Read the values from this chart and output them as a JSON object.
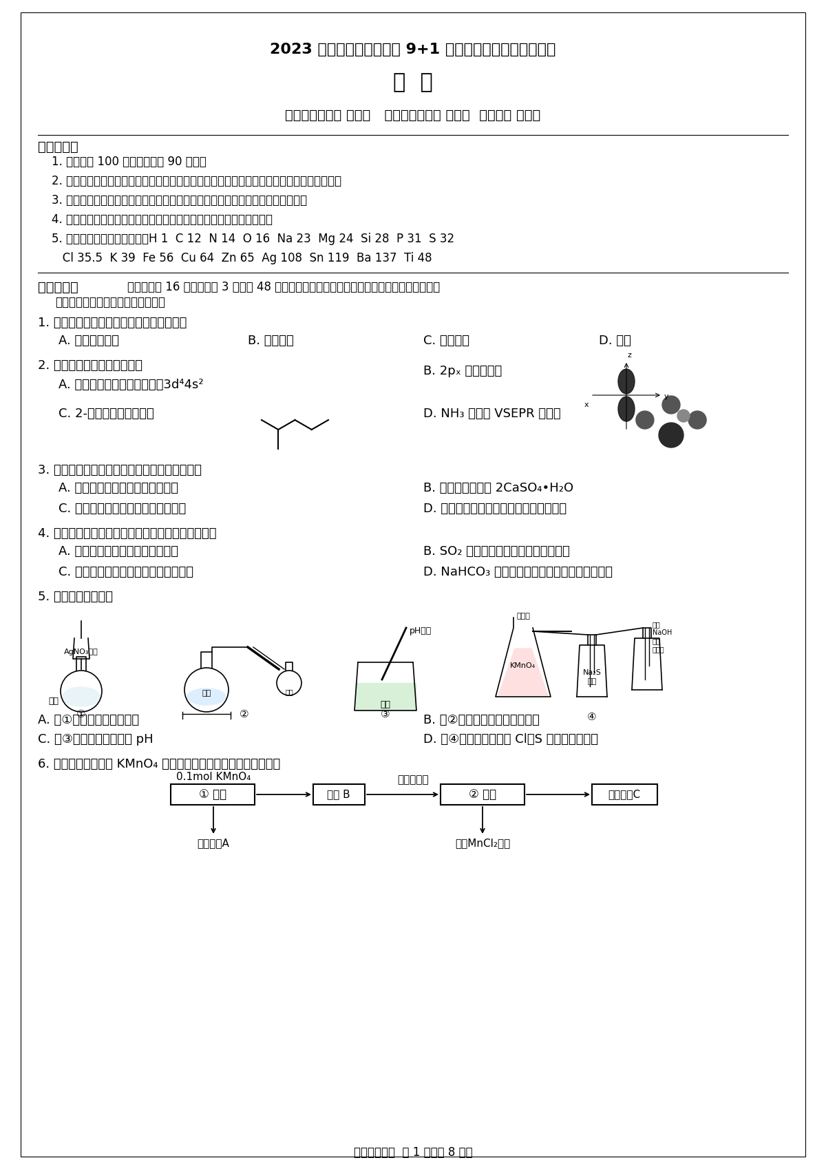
{
  "bg_color": "#ffffff",
  "title1": "2023 学年第一学期浙江省 9+1 高中联盟高三年级期中考试",
  "title2": "化  学",
  "subtitle": "命题：新昌中学 邱常清   审题：长兴中学 朱卫琦  富阳中学 陈斯林",
  "notice_title": "考生须知：",
  "notices": [
    "1. 本卷满分 100 分，考试时间 90 分钟；",
    "2. 答题前，在答题卷指定区域填写班级、姓名、考场、座位号及准考证号并核对条形码信息；",
    "3. 所有答案必须写在答题卷上，写在试卷上无效，考试结束后，只需上交答题卷；",
    "4. 参加联批学校的学生可关注「启望教育」公众号查询个人成绩分析；",
    "5. 可能用到的相对原子质量：H 1  C 12  N 14  O 16  Na 23  Mg 24  Si 28  P 31  S 32",
    "   Cl 35.5  K 39  Fe 56  Cu 64  Zn 65  Ag 108  Sn 119  Ba 137  Ti 48"
  ],
  "footer": "高三化学试题  第 1 页（共 8 页）"
}
